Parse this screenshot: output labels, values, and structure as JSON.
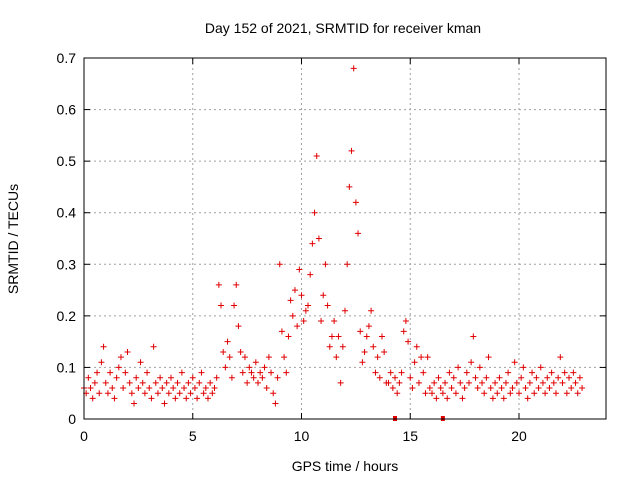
{
  "chart_data": {
    "type": "scatter",
    "title": "Day 152 of 2021, SRMTID for receiver kman",
    "xlabel": "GPS time / hours",
    "ylabel": "SRMTID / TECUs",
    "xlim": [
      0,
      24
    ],
    "ylim": [
      0,
      0.7
    ],
    "x_ticks": [
      0,
      5,
      10,
      15,
      20
    ],
    "y_ticks": [
      0,
      0.1,
      0.2,
      0.3,
      0.4,
      0.5,
      0.6,
      0.7
    ],
    "x_tick_labels": [
      "0",
      "5",
      "10",
      "15",
      "20"
    ],
    "y_tick_labels": [
      "0",
      "0.1",
      "0.2",
      "0.3",
      "0.4",
      "0.5",
      "0.6",
      "0.7"
    ],
    "grid": true,
    "marker": "plus",
    "marker_color": "#e00000",
    "gap_markers_x": [
      14.3,
      16.5
    ],
    "series": [
      {
        "name": "SRMTID",
        "points": [
          [
            0.0,
            0.06
          ],
          [
            0.1,
            0.05
          ],
          [
            0.2,
            0.08
          ],
          [
            0.3,
            0.06
          ],
          [
            0.4,
            0.04
          ],
          [
            0.5,
            0.07
          ],
          [
            0.6,
            0.09
          ],
          [
            0.7,
            0.05
          ],
          [
            0.8,
            0.11
          ],
          [
            0.9,
            0.14
          ],
          [
            1.0,
            0.07
          ],
          [
            1.1,
            0.05
          ],
          [
            1.2,
            0.09
          ],
          [
            1.3,
            0.06
          ],
          [
            1.4,
            0.04
          ],
          [
            1.5,
            0.08
          ],
          [
            1.6,
            0.1
          ],
          [
            1.7,
            0.12
          ],
          [
            1.8,
            0.06
          ],
          [
            1.9,
            0.09
          ],
          [
            2.0,
            0.13
          ],
          [
            2.1,
            0.07
          ],
          [
            2.2,
            0.05
          ],
          [
            2.3,
            0.03
          ],
          [
            2.4,
            0.08
          ],
          [
            2.5,
            0.06
          ],
          [
            2.6,
            0.11
          ],
          [
            2.7,
            0.07
          ],
          [
            2.8,
            0.05
          ],
          [
            2.9,
            0.09
          ],
          [
            3.0,
            0.06
          ],
          [
            3.1,
            0.04
          ],
          [
            3.2,
            0.14
          ],
          [
            3.3,
            0.07
          ],
          [
            3.4,
            0.05
          ],
          [
            3.5,
            0.08
          ],
          [
            3.6,
            0.06
          ],
          [
            3.7,
            0.03
          ],
          [
            3.8,
            0.07
          ],
          [
            3.9,
            0.05
          ],
          [
            4.0,
            0.08
          ],
          [
            4.1,
            0.06
          ],
          [
            4.2,
            0.04
          ],
          [
            4.3,
            0.07
          ],
          [
            4.4,
            0.05
          ],
          [
            4.5,
            0.09
          ],
          [
            4.6,
            0.06
          ],
          [
            4.7,
            0.04
          ],
          [
            4.8,
            0.07
          ],
          [
            4.9,
            0.05
          ],
          [
            5.0,
            0.08
          ],
          [
            5.1,
            0.06
          ],
          [
            5.2,
            0.04
          ],
          [
            5.3,
            0.07
          ],
          [
            5.4,
            0.09
          ],
          [
            5.5,
            0.05
          ],
          [
            5.6,
            0.06
          ],
          [
            5.7,
            0.04
          ],
          [
            5.8,
            0.07
          ],
          [
            5.9,
            0.05
          ],
          [
            6.0,
            0.06
          ],
          [
            6.1,
            0.08
          ],
          [
            6.2,
            0.26
          ],
          [
            6.3,
            0.22
          ],
          [
            6.4,
            0.13
          ],
          [
            6.5,
            0.1
          ],
          [
            6.6,
            0.15
          ],
          [
            6.7,
            0.12
          ],
          [
            6.8,
            0.08
          ],
          [
            6.9,
            0.22
          ],
          [
            7.0,
            0.26
          ],
          [
            7.1,
            0.18
          ],
          [
            7.2,
            0.13
          ],
          [
            7.3,
            0.09
          ],
          [
            7.4,
            0.12
          ],
          [
            7.5,
            0.07
          ],
          [
            7.6,
            0.1
          ],
          [
            7.7,
            0.09
          ],
          [
            7.8,
            0.08
          ],
          [
            7.9,
            0.11
          ],
          [
            8.0,
            0.07
          ],
          [
            8.1,
            0.09
          ],
          [
            8.2,
            0.08
          ],
          [
            8.3,
            0.1
          ],
          [
            8.4,
            0.06
          ],
          [
            8.5,
            0.12
          ],
          [
            8.6,
            0.09
          ],
          [
            8.7,
            0.05
          ],
          [
            8.8,
            0.03
          ],
          [
            8.9,
            0.08
          ],
          [
            9.0,
            0.3
          ],
          [
            9.1,
            0.17
          ],
          [
            9.2,
            0.12
          ],
          [
            9.3,
            0.09
          ],
          [
            9.4,
            0.16
          ],
          [
            9.5,
            0.23
          ],
          [
            9.6,
            0.2
          ],
          [
            9.7,
            0.25
          ],
          [
            9.8,
            0.18
          ],
          [
            9.9,
            0.29
          ],
          [
            10.0,
            0.24
          ],
          [
            10.1,
            0.19
          ],
          [
            10.2,
            0.21
          ],
          [
            10.3,
            0.22
          ],
          [
            10.4,
            0.28
          ],
          [
            10.5,
            0.34
          ],
          [
            10.6,
            0.4
          ],
          [
            10.7,
            0.51
          ],
          [
            10.8,
            0.35
          ],
          [
            10.9,
            0.19
          ],
          [
            11.0,
            0.24
          ],
          [
            11.1,
            0.3
          ],
          [
            11.2,
            0.22
          ],
          [
            11.3,
            0.14
          ],
          [
            11.4,
            0.16
          ],
          [
            11.5,
            0.19
          ],
          [
            11.6,
            0.12
          ],
          [
            11.7,
            0.16
          ],
          [
            11.8,
            0.07
          ],
          [
            11.9,
            0.14
          ],
          [
            12.0,
            0.21
          ],
          [
            12.1,
            0.3
          ],
          [
            12.2,
            0.45
          ],
          [
            12.3,
            0.52
          ],
          [
            12.4,
            0.68
          ],
          [
            12.5,
            0.42
          ],
          [
            12.6,
            0.36
          ],
          [
            12.7,
            0.17
          ],
          [
            12.8,
            0.11
          ],
          [
            12.9,
            0.13
          ],
          [
            13.0,
            0.16
          ],
          [
            13.1,
            0.18
          ],
          [
            13.2,
            0.21
          ],
          [
            13.3,
            0.14
          ],
          [
            13.4,
            0.09
          ],
          [
            13.5,
            0.12
          ],
          [
            13.6,
            0.08
          ],
          [
            13.7,
            0.16
          ],
          [
            13.8,
            0.13
          ],
          [
            13.9,
            0.07
          ],
          [
            14.0,
            0.07
          ],
          [
            14.1,
            0.09
          ],
          [
            14.2,
            0.06
          ],
          [
            14.3,
            0.08
          ],
          [
            14.4,
            0.05
          ],
          [
            14.5,
            0.07
          ],
          [
            14.6,
            0.09
          ],
          [
            14.7,
            0.17
          ],
          [
            14.8,
            0.19
          ],
          [
            14.9,
            0.15
          ],
          [
            15.0,
            0.08
          ],
          [
            15.1,
            0.06
          ],
          [
            15.2,
            0.11
          ],
          [
            15.3,
            0.14
          ],
          [
            15.4,
            0.07
          ],
          [
            15.5,
            0.12
          ],
          [
            15.6,
            0.09
          ],
          [
            15.7,
            0.05
          ],
          [
            15.8,
            0.12
          ],
          [
            15.9,
            0.06
          ],
          [
            16.0,
            0.05
          ],
          [
            16.1,
            0.07
          ],
          [
            16.2,
            0.04
          ],
          [
            16.3,
            0.08
          ],
          [
            16.4,
            0.06
          ],
          [
            16.5,
            0.05
          ],
          [
            16.6,
            0.07
          ],
          [
            16.7,
            0.04
          ],
          [
            16.8,
            0.09
          ],
          [
            16.9,
            0.06
          ],
          [
            17.0,
            0.08
          ],
          [
            17.1,
            0.05
          ],
          [
            17.2,
            0.1
          ],
          [
            17.3,
            0.07
          ],
          [
            17.4,
            0.04
          ],
          [
            17.5,
            0.06
          ],
          [
            17.6,
            0.09
          ],
          [
            17.7,
            0.07
          ],
          [
            17.8,
            0.11
          ],
          [
            17.9,
            0.16
          ],
          [
            18.0,
            0.08
          ],
          [
            18.1,
            0.06
          ],
          [
            18.2,
            0.1
          ],
          [
            18.3,
            0.07
          ],
          [
            18.4,
            0.05
          ],
          [
            18.5,
            0.08
          ],
          [
            18.6,
            0.12
          ],
          [
            18.7,
            0.06
          ],
          [
            18.8,
            0.04
          ],
          [
            18.9,
            0.07
          ],
          [
            19.0,
            0.05
          ],
          [
            19.1,
            0.08
          ],
          [
            19.2,
            0.06
          ],
          [
            19.3,
            0.04
          ],
          [
            19.4,
            0.07
          ],
          [
            19.5,
            0.09
          ],
          [
            19.6,
            0.05
          ],
          [
            19.7,
            0.06
          ],
          [
            19.8,
            0.11
          ],
          [
            19.9,
            0.07
          ],
          [
            20.0,
            0.05
          ],
          [
            20.1,
            0.08
          ],
          [
            20.2,
            0.1
          ],
          [
            20.3,
            0.06
          ],
          [
            20.4,
            0.04
          ],
          [
            20.5,
            0.07
          ],
          [
            20.6,
            0.09
          ],
          [
            20.7,
            0.05
          ],
          [
            20.8,
            0.08
          ],
          [
            20.9,
            0.06
          ],
          [
            21.0,
            0.1
          ],
          [
            21.1,
            0.07
          ],
          [
            21.2,
            0.05
          ],
          [
            21.3,
            0.08
          ],
          [
            21.4,
            0.06
          ],
          [
            21.5,
            0.09
          ],
          [
            21.6,
            0.07
          ],
          [
            21.7,
            0.05
          ],
          [
            21.8,
            0.08
          ],
          [
            21.9,
            0.12
          ],
          [
            22.0,
            0.07
          ],
          [
            22.1,
            0.09
          ],
          [
            22.2,
            0.05
          ],
          [
            22.3,
            0.08
          ],
          [
            22.4,
            0.06
          ],
          [
            22.5,
            0.09
          ],
          [
            22.6,
            0.07
          ],
          [
            22.7,
            0.05
          ],
          [
            22.8,
            0.08
          ],
          [
            22.9,
            0.06
          ]
        ]
      }
    ]
  }
}
